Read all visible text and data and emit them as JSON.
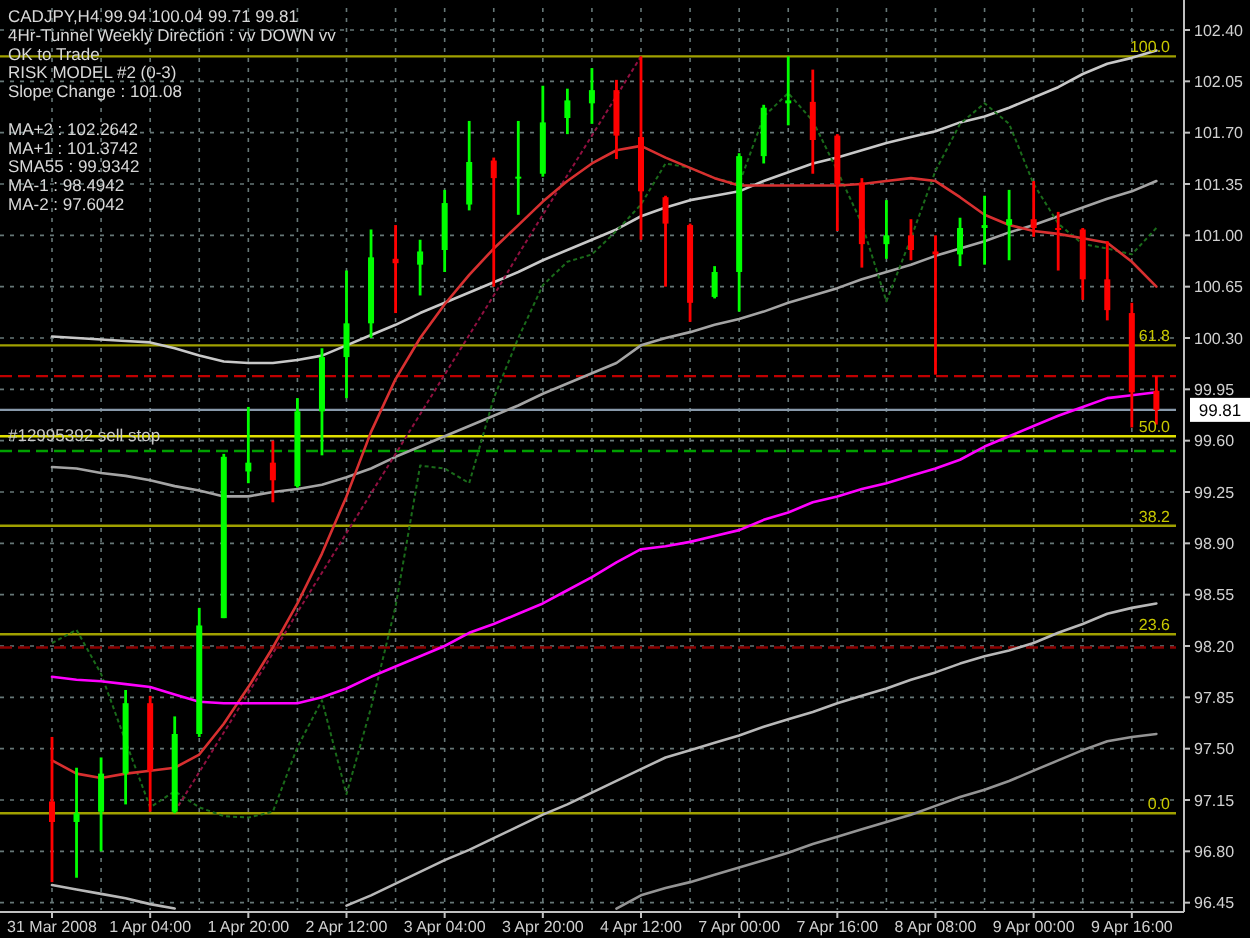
{
  "chart_data": {
    "type": "candlestick",
    "title": "CADJPY,H4  99.94 100.04 99.71 99.81",
    "annotations": [
      "4Hr-Tunnel Weekly Direction : vv DOWN vv",
      "OK to Trade",
      "RISK MODEL #2 (0-3)",
      "Slope Change : 101.08",
      "MA+2 : 102.2642",
      "MA+1 : 101.3742",
      "SMA55 : 99.9342",
      "MA-1 : 98.4942",
      "MA-2 : 97.6042",
      {
        "text": "100.0",
        "y": 102.22
      },
      {
        "text": "61.8",
        "y": 100.25
      },
      {
        "text": "50.0",
        "y": 99.63
      },
      {
        "text": "38.2",
        "y": 99.02
      },
      {
        "text": "23.6",
        "y": 98.28
      },
      {
        "text": "0.0",
        "y": 97.06
      }
    ],
    "categories": [
      "31 Mar 2008",
      null,
      null,
      null,
      "1 Apr 04:00",
      null,
      null,
      null,
      "1 Apr 20:00",
      null,
      null,
      null,
      "2 Apr 12:00",
      null,
      null,
      null,
      "3 Apr 04:00",
      null,
      null,
      null,
      "3 Apr 20:00",
      null,
      null,
      null,
      "4 Apr 12:00",
      null,
      null,
      null,
      "7 Apr 00:00",
      null,
      null,
      null,
      "7 Apr 16:00",
      null,
      null,
      null,
      "8 Apr 08:00",
      null,
      null,
      null,
      "9 Apr 00:00",
      null,
      null,
      null,
      "9 Apr 16:00",
      null
    ],
    "ohlc": [
      [
        97.14,
        97.58,
        96.59,
        97.0
      ],
      [
        97.0,
        97.37,
        96.62,
        97.06
      ],
      [
        97.07,
        97.44,
        96.8,
        97.33
      ],
      [
        97.33,
        97.9,
        97.12,
        97.81
      ],
      [
        97.81,
        97.86,
        97.07,
        97.35
      ],
      [
        97.07,
        97.72,
        97.06,
        97.6
      ],
      [
        97.6,
        98.46,
        97.58,
        98.34
      ],
      [
        98.39,
        99.51,
        98.39,
        99.49
      ],
      [
        99.39,
        99.83,
        99.31,
        99.45
      ],
      [
        99.45,
        99.6,
        99.18,
        99.33
      ],
      [
        99.29,
        99.89,
        99.28,
        99.8
      ],
      [
        99.8,
        100.23,
        99.5,
        100.17
      ],
      [
        100.17,
        100.76,
        99.89,
        100.4
      ],
      [
        100.4,
        101.04,
        100.3,
        100.85
      ],
      [
        100.84,
        101.07,
        100.47,
        100.81
      ],
      [
        100.8,
        100.97,
        100.59,
        100.89
      ],
      [
        100.9,
        101.31,
        100.75,
        101.22
      ],
      [
        101.21,
        101.78,
        101.17,
        101.5
      ],
      [
        101.51,
        101.53,
        100.65,
        101.39
      ],
      [
        101.39,
        101.78,
        101.14,
        101.4
      ],
      [
        101.42,
        102.02,
        101.4,
        101.77
      ],
      [
        101.8,
        102.0,
        101.69,
        101.92
      ],
      [
        101.9,
        102.14,
        101.76,
        101.99
      ],
      [
        101.99,
        102.06,
        101.52,
        101.68
      ],
      [
        101.67,
        102.22,
        100.97,
        101.3
      ],
      [
        101.26,
        101.27,
        100.65,
        101.08
      ],
      [
        101.07,
        101.08,
        100.41,
        100.54
      ],
      [
        100.58,
        100.79,
        100.57,
        100.75
      ],
      [
        100.75,
        101.56,
        100.48,
        101.54
      ],
      [
        101.54,
        101.89,
        101.49,
        101.87
      ],
      [
        101.9,
        102.22,
        101.75,
        101.92
      ],
      [
        101.91,
        102.13,
        101.42,
        101.65
      ],
      [
        101.68,
        101.69,
        101.03,
        101.35
      ],
      [
        101.36,
        101.39,
        100.78,
        100.94
      ],
      [
        100.94,
        101.24,
        100.84,
        101.0
      ],
      [
        101.0,
        101.11,
        100.83,
        100.9
      ],
      [
        100.89,
        101.0,
        100.05,
        100.87
      ],
      [
        100.87,
        101.12,
        100.79,
        101.05
      ],
      [
        101.05,
        101.27,
        100.8,
        101.07
      ],
      [
        101.07,
        101.31,
        100.83,
        101.11
      ],
      [
        101.11,
        101.37,
        100.99,
        101.05
      ],
      [
        101.05,
        101.16,
        100.76,
        101.04
      ],
      [
        101.04,
        101.05,
        100.56,
        100.7
      ],
      [
        100.7,
        100.96,
        100.42,
        100.49
      ],
      [
        100.47,
        100.54,
        99.69,
        99.93
      ],
      [
        99.94,
        100.04,
        99.71,
        99.81
      ]
    ],
    "colors": [
      "#ff0000",
      "#00ff00",
      "#00ff00",
      "#00ff00",
      "#ff0000",
      "#00ff00",
      "#00ff00",
      "#00ff00",
      "#00ff00",
      "#ff0000",
      "#00ff00",
      "#00ff00",
      "#00ff00",
      "#00ff00",
      "#ff0000",
      "#00ff00",
      "#00ff00",
      "#00ff00",
      "#ff0000",
      "#00ff00",
      "#00ff00",
      "#00ff00",
      "#00ff00",
      "#ff0000",
      "#ff0000",
      "#ff0000",
      "#ff0000",
      "#00ff00",
      "#00ff00",
      "#00ff00",
      "#00ff00",
      "#ff0000",
      "#ff0000",
      "#ff0000",
      "#00ff00",
      "#ff0000",
      "#ff0000",
      "#00ff00",
      "#00ff00",
      "#00ff00",
      "#ff0000",
      "#ff0000",
      "#ff0000",
      "#ff0000",
      "#ff0000",
      "#ff0000"
    ],
    "series": [
      {
        "type": "line",
        "color": "#c8c8c8",
        "values": [
          100.31,
          100.3,
          100.29,
          100.28,
          100.27,
          100.23,
          100.18,
          100.14,
          100.13,
          100.13,
          100.15,
          100.18,
          100.25,
          100.32,
          100.39,
          100.47,
          100.54,
          100.61,
          100.68,
          100.75,
          100.83,
          100.9,
          100.97,
          101.04,
          101.13,
          101.19,
          101.24,
          101.27,
          101.3,
          101.37,
          101.43,
          101.49,
          101.53,
          101.58,
          101.63,
          101.67,
          101.71,
          101.77,
          101.81,
          101.87,
          101.94,
          102.01,
          102.1,
          102.17,
          102.21,
          102.26
        ]
      },
      {
        "type": "line",
        "color": "#a4a4a4",
        "values": [
          99.42,
          99.41,
          99.38,
          99.36,
          99.33,
          99.29,
          99.26,
          99.22,
          99.22,
          99.25,
          99.27,
          99.3,
          99.35,
          99.41,
          99.49,
          99.56,
          99.63,
          99.7,
          99.77,
          99.84,
          99.92,
          99.99,
          100.06,
          100.13,
          100.25,
          100.3,
          100.34,
          100.39,
          100.43,
          100.48,
          100.54,
          100.59,
          100.64,
          100.7,
          100.75,
          100.8,
          100.86,
          100.91,
          100.96,
          101.02,
          101.07,
          101.13,
          101.19,
          101.25,
          101.3,
          101.37
        ]
      },
      {
        "type": "line",
        "color": "#b8b8b8",
        "values": [
          96.57,
          96.54,
          96.51,
          96.48,
          96.44,
          96.41,
          null,
          null,
          null,
          null,
          null,
          null,
          96.43,
          96.5,
          96.58,
          96.66,
          96.74,
          96.81,
          96.89,
          96.97,
          97.05,
          97.12,
          97.2,
          97.28,
          97.36,
          97.44,
          97.49,
          97.54,
          97.59,
          97.65,
          97.7,
          97.75,
          97.81,
          97.86,
          97.91,
          97.97,
          98.02,
          98.08,
          98.13,
          98.17,
          98.22,
          98.29,
          98.35,
          98.42,
          98.46,
          98.49
        ]
      },
      {
        "type": "line",
        "color": "#949494",
        "values": [
          null,
          null,
          null,
          null,
          null,
          null,
          null,
          null,
          null,
          null,
          null,
          null,
          null,
          null,
          null,
          null,
          null,
          null,
          null,
          null,
          null,
          null,
          null,
          96.41,
          96.5,
          96.55,
          96.59,
          96.64,
          96.69,
          96.74,
          96.79,
          96.85,
          96.9,
          96.95,
          97.0,
          97.05,
          97.11,
          97.17,
          97.22,
          97.28,
          97.35,
          97.42,
          97.49,
          97.55,
          97.58,
          97.6
        ]
      },
      {
        "type": "line",
        "color": "#1a6b1a",
        "line_style": "dotted",
        "values": [
          98.22,
          98.31,
          98.01,
          97.55,
          97.1,
          97.21,
          97.1,
          97.04,
          97.03,
          97.07,
          97.51,
          97.83,
          97.19,
          97.78,
          98.47,
          99.43,
          99.41,
          99.31,
          99.89,
          100.3,
          100.66,
          100.82,
          100.87,
          101.03,
          101.21,
          101.49,
          101.46,
          101.39,
          101.35,
          101.81,
          101.97,
          101.78,
          101.44,
          101.08,
          100.55,
          100.98,
          101.44,
          101.76,
          101.9,
          101.76,
          101.35,
          101.08,
          100.94,
          100.91,
          100.87,
          101.05
        ]
      },
      {
        "type": "line",
        "color": "#901040",
        "line_style": "dotted",
        "values": [
          null,
          null,
          null,
          null,
          null,
          97.07,
          97.34,
          97.61,
          97.88,
          98.15,
          98.43,
          98.7,
          98.97,
          99.24,
          99.51,
          99.78,
          100.05,
          100.32,
          100.59,
          100.87,
          101.14,
          101.41,
          101.68,
          101.95,
          102.22,
          null,
          null,
          null,
          null,
          null,
          null,
          null,
          null,
          null,
          null,
          null,
          null,
          null,
          null,
          null,
          null,
          null,
          null,
          null,
          null,
          null
        ]
      },
      {
        "type": "line",
        "color": "#d83030",
        "values": [
          97.42,
          97.33,
          97.3,
          97.33,
          97.35,
          97.37,
          97.46,
          97.67,
          97.92,
          98.19,
          98.49,
          98.83,
          99.22,
          99.66,
          100.02,
          100.3,
          100.53,
          100.73,
          100.91,
          101.07,
          101.23,
          101.37,
          101.49,
          101.58,
          101.61,
          101.53,
          101.46,
          101.39,
          101.34,
          101.34,
          101.34,
          101.34,
          101.34,
          101.35,
          101.37,
          101.39,
          101.37,
          101.26,
          101.14,
          101.07,
          101.03,
          101.01,
          100.98,
          100.95,
          100.82,
          100.65
        ]
      },
      {
        "type": "line",
        "color": "#ff00ff",
        "values": [
          97.99,
          97.97,
          97.96,
          97.94,
          97.92,
          97.87,
          97.82,
          97.81,
          97.81,
          97.81,
          97.81,
          97.85,
          97.91,
          97.99,
          98.06,
          98.13,
          98.2,
          98.29,
          98.35,
          98.42,
          98.49,
          98.58,
          98.67,
          98.77,
          98.86,
          98.88,
          98.91,
          98.95,
          98.99,
          99.06,
          99.11,
          99.18,
          99.22,
          99.27,
          99.31,
          99.36,
          99.41,
          99.47,
          99.56,
          99.63,
          99.7,
          99.77,
          99.83,
          99.89,
          99.91,
          99.93
        ]
      }
    ],
    "ref_lines": [
      {
        "axis": "y",
        "value": 102.22,
        "color": "#a0a000"
      },
      {
        "axis": "y",
        "value": 100.25,
        "color": "#a0a000"
      },
      {
        "axis": "y",
        "value": 99.63,
        "color": "#e0e000"
      },
      {
        "axis": "y",
        "value": 99.02,
        "color": "#a0a000"
      },
      {
        "axis": "y",
        "value": 98.28,
        "color": "#a0a000"
      },
      {
        "axis": "y",
        "value": 97.06,
        "color": "#a0a000"
      },
      {
        "axis": "y",
        "value": 100.04,
        "color": "#c00000",
        "line_style": "dashed"
      },
      {
        "axis": "y",
        "value": 98.19,
        "color": "#8b0000",
        "line_style": "dashed"
      },
      {
        "axis": "y",
        "value": 99.53,
        "label": "#12995392 sell stop",
        "color": "#00a000",
        "line_style": "dashed"
      },
      {
        "axis": "y",
        "value": 99.81,
        "label": "99.81",
        "color": "#8899aa",
        "line_style": "solid"
      }
    ],
    "ylim": [
      96.4,
      102.55
    ],
    "yticks": [
      {
        "value": 102.4,
        "label": "102.40"
      },
      {
        "value": 102.05,
        "label": "102.05"
      },
      {
        "value": 101.7,
        "label": "101.70"
      },
      {
        "value": 101.35,
        "label": "101.35"
      },
      {
        "value": 101.0,
        "label": "101.00"
      },
      {
        "value": 100.65,
        "label": "100.65"
      },
      {
        "value": 100.3,
        "label": "100.30"
      },
      {
        "value": 99.95,
        "label": "99.95"
      },
      {
        "value": 99.6,
        "label": "99.60"
      },
      {
        "value": 99.25,
        "label": "99.25"
      },
      {
        "value": 98.9,
        "label": "98.90"
      },
      {
        "value": 98.55,
        "label": "98.55"
      },
      {
        "value": 98.2,
        "label": "98.20"
      },
      {
        "value": 97.85,
        "label": "97.85"
      },
      {
        "value": 97.5,
        "label": "97.50"
      },
      {
        "value": 97.15,
        "label": "97.15"
      },
      {
        "value": 96.8,
        "label": "96.80"
      },
      {
        "value": 96.45,
        "label": "96.45"
      }
    ],
    "grid": true
  }
}
